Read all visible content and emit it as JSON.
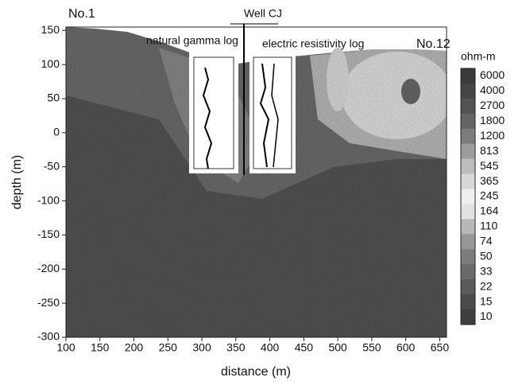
{
  "chart_data": {
    "type": "contour",
    "x_label": "distance (m)",
    "y_label": "depth (m)",
    "xlim": [
      100,
      660
    ],
    "ylim": [
      -300,
      155
    ],
    "xticks": [
      100,
      150,
      200,
      250,
      300,
      350,
      400,
      450,
      500,
      550,
      600,
      650
    ],
    "yticks": [
      150,
      100,
      50,
      0,
      -50,
      -100,
      -150,
      -200,
      -250,
      -300
    ],
    "annotations": [
      "No.1",
      "No.12",
      "Well CJ",
      "natural gamma log",
      "electric resistivity log"
    ],
    "colorbar": {
      "unit": "ohm-m",
      "levels": [
        6000,
        4000,
        2700,
        1800,
        1200,
        813,
        545,
        365,
        245,
        164,
        110,
        74,
        50,
        33,
        22,
        15,
        10
      ],
      "colors": [
        "#3a3a3a",
        "#454545",
        "#525252",
        "#646464",
        "#7c7c7c",
        "#9c9c9c",
        "#bdbdbd",
        "#d8d8d8",
        "#efefef",
        "#e2e2e2",
        "#b8b8b8",
        "#979797",
        "#7d7d7d",
        "#6a6a6a",
        "#5a5a5a",
        "#4b4b4b",
        "#3e3e3e"
      ]
    }
  }
}
